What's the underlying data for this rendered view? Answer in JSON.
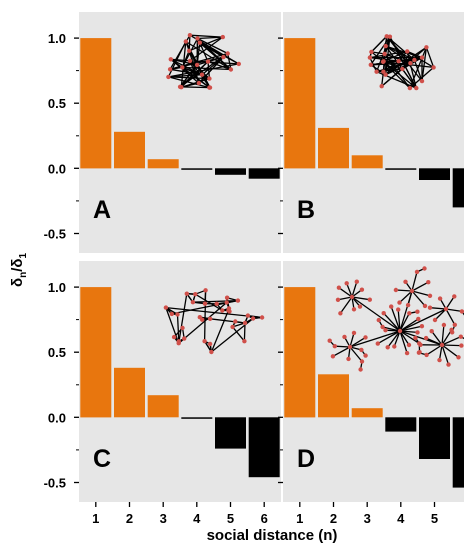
{
  "chart_data": {
    "type": "bar",
    "ylabel_main": "δ",
    "ylabel_sub_n": "n",
    "ylabel_slash": "/δ",
    "ylabel_sub_1": "1",
    "xlabel": "social distance (n)",
    "categories": [
      "1",
      "2",
      "3",
      "4",
      "5",
      "6"
    ],
    "ylim": [
      -0.65,
      1.2
    ],
    "yticks": [
      "1.0",
      "0.5",
      "0.0",
      "-0.5"
    ],
    "ytick_values": [
      1.0,
      0.5,
      0.0,
      -0.5
    ],
    "grid": false,
    "colors": {
      "panel_bg": "#e6e6e6",
      "positive": "#e8760e",
      "negative": "#000000",
      "node": "#d0504a",
      "edge": "#000000"
    },
    "panels": [
      {
        "letter": "A",
        "network": "random",
        "values": [
          1.0,
          0.28,
          0.07,
          -0.01,
          -0.05,
          -0.08
        ]
      },
      {
        "letter": "B",
        "network": "random",
        "values": [
          1.0,
          0.31,
          0.1,
          -0.01,
          -0.09,
          -0.3
        ]
      },
      {
        "letter": "C",
        "network": "small-world",
        "values": [
          1.0,
          0.38,
          0.17,
          -0.01,
          -0.24,
          -0.46
        ]
      },
      {
        "letter": "D",
        "network": "scale-free",
        "values": [
          1.0,
          0.33,
          0.07,
          -0.11,
          -0.32,
          -0.54
        ]
      }
    ]
  }
}
